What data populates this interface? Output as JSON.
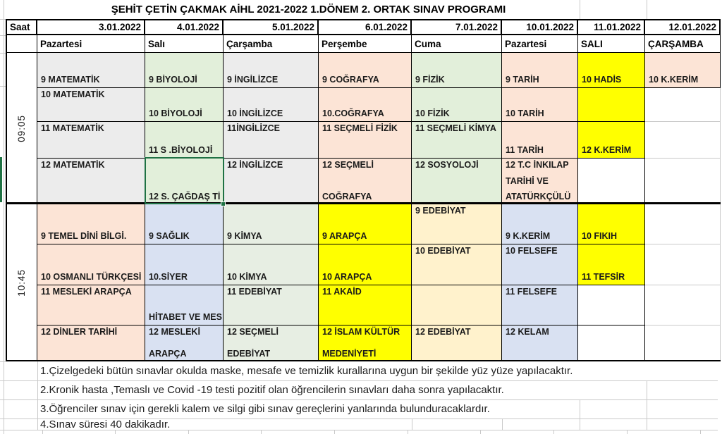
{
  "app": {
    "title": "ŞEHİT ÇETİN ÇAKMAK AİHL  2021-2022 1.DÖNEM 2. ORTAK SINAV PROGRAMI"
  },
  "header": {
    "saat_label": "Saat",
    "columns": [
      {
        "date": "3.01.2022",
        "day": "Pazartesi"
      },
      {
        "date": "4.01.2022",
        "day": "Salı"
      },
      {
        "date": "5.01.2022",
        "day": "Çarşamba"
      },
      {
        "date": "6.01.2022",
        "day": "Perşembe"
      },
      {
        "date": "7.01.2022",
        "day": "Cuma"
      },
      {
        "date": "10.01.2022",
        "day": "Pazartesi"
      },
      {
        "date": "11.01.2022",
        "day": "SALI"
      },
      {
        "date": "12.01.2022",
        "day": "ÇARŞAMBA"
      }
    ]
  },
  "colors": {
    "grey": "#ECECEC",
    "green": "#E2EFDA",
    "green2": "#E7EEE3",
    "peach": "#FCE4D6",
    "yellow": "#FFFF00",
    "blue": "#D9E1F2",
    "cream": "#FFF2CC",
    "white": "#FFFFFF",
    "selection": "#1F7244",
    "gridline": "#C9C9C9",
    "border": "#000000"
  },
  "blocks": [
    {
      "time": "09:05",
      "rows": [
        {
          "cells": [
            {
              "t": "9 MATEMATİK",
              "bg": "grey",
              "va": "bottom"
            },
            {
              "t": "9 BİYOLOJİ",
              "bg": "green",
              "va": "bottom"
            },
            {
              "t": "9 İNGİLİZCE",
              "bg": "grey",
              "va": "bottom"
            },
            {
              "t": "9 COĞRAFYA",
              "bg": "peach",
              "va": "bottom"
            },
            {
              "t": "9 FİZİK",
              "bg": "green",
              "va": "bottom"
            },
            {
              "t": "9 TARİH",
              "bg": "peach",
              "va": "bottom"
            },
            {
              "t": "10 HADİS",
              "bg": "yellow",
              "va": "bottom"
            },
            {
              "t": "10 K.KERİM",
              "bg": "peach",
              "va": "bottom"
            }
          ]
        },
        {
          "cells": [
            {
              "t": "10 MATEMATİK",
              "bg": "grey",
              "va": "top"
            },
            {
              "t": "10 BİYOLOJİ",
              "bg": "green",
              "va": "bottom"
            },
            {
              "t": "10 İNGİLİZCE",
              "bg": "grey",
              "va": "bottom"
            },
            {
              "t": "10.COĞRAFYA",
              "bg": "peach",
              "va": "bottom"
            },
            {
              "t": "10 FİZİK",
              "bg": "green",
              "va": "bottom"
            },
            {
              "t": "10 TARİH",
              "bg": "peach",
              "va": "bottom"
            },
            {
              "t": "",
              "bg": "yellow",
              "va": "top"
            },
            {
              "t": "",
              "bg": "white",
              "va": "top",
              "gb": true
            }
          ]
        },
        {
          "cells": [
            {
              "t": "11 MATEMATİK",
              "bg": "grey",
              "va": "top"
            },
            {
              "t": "11 S .BİYOLOJİ",
              "bg": "green",
              "va": "bottom"
            },
            {
              "t": "11İNGİLİZCE",
              "bg": "grey",
              "va": "top"
            },
            {
              "t": "11 SEÇMELİ FİZİK",
              "bg": "peach",
              "va": "top"
            },
            {
              "t": "11 SEÇMELİ KİMYA",
              "bg": "green",
              "va": "top"
            },
            {
              "t": "11 TARİH",
              "bg": "peach",
              "va": "bottom"
            },
            {
              "t": "12 K.KERİM",
              "bg": "yellow",
              "va": "bottom"
            },
            {
              "t": "",
              "bg": "white",
              "va": "top",
              "gb": true
            }
          ]
        },
        {
          "cells": [
            {
              "t": "12 MATEMATİK",
              "bg": "grey",
              "va": "top"
            },
            {
              "t": "12 S. ÇAĞDAŞ Tİ",
              "bg": "green",
              "va": "bottom",
              "selected": true
            },
            {
              "t": "12 İNGİLİZCE",
              "bg": "grey",
              "va": "top"
            },
            {
              "t": [
                "12 SEÇMELİ",
                "COĞRAFYA"
              ],
              "bg": "peach",
              "va": "spread"
            },
            {
              "t": "12 SOSYOLOJİ",
              "bg": "green",
              "va": "top"
            },
            {
              "t": [
                "12 T.C İNKILAP",
                "TARİHİ  VE",
                "ATATÜRKÇÜLÜ"
              ],
              "bg": "peach",
              "va": "spread"
            },
            {
              "t": "",
              "bg": "white",
              "va": "top"
            },
            {
              "t": "",
              "bg": "white",
              "va": "top",
              "gb": true
            }
          ]
        }
      ]
    },
    {
      "time": "10:45",
      "rows": [
        {
          "cells": [
            {
              "t": "9 TEMEL DİNİ BİLGİ.",
              "bg": "peach",
              "va": "bottom"
            },
            {
              "t": "9 SAĞLIK",
              "bg": "blue",
              "va": "bottom"
            },
            {
              "t": "9 KİMYA",
              "bg": "green2",
              "va": "bottom"
            },
            {
              "t": "9 ARAPÇA",
              "bg": "yellow",
              "va": "bottom"
            },
            {
              "t": "9 EDEBİYAT",
              "bg": "cream",
              "va": "top"
            },
            {
              "t": "9 K.KERİM",
              "bg": "blue",
              "va": "bottom"
            },
            {
              "t": "10 FIKIH",
              "bg": "yellow",
              "va": "bottom"
            },
            {
              "t": "",
              "bg": "white",
              "va": "top",
              "gb": true
            }
          ]
        },
        {
          "cells": [
            {
              "t": "10 OSMANLI TÜRKÇESİ",
              "bg": "peach",
              "va": "bottom"
            },
            {
              "t": "10.SİYER",
              "bg": "blue",
              "va": "bottom"
            },
            {
              "t": "10 KİMYA",
              "bg": "green2",
              "va": "bottom"
            },
            {
              "t": "10 ARAPÇA",
              "bg": "yellow",
              "va": "bottom"
            },
            {
              "t": "10 EDEBİYAT",
              "bg": "cream",
              "va": "top"
            },
            {
              "t": "10 FELSEFE",
              "bg": "blue",
              "va": "top"
            },
            {
              "t": "11 TEFSİR",
              "bg": "yellow",
              "va": "bottom"
            },
            {
              "t": "",
              "bg": "white",
              "va": "top",
              "gb": true
            }
          ]
        },
        {
          "cells": [
            {
              "t": "11 MESLEKİ ARAPÇA",
              "bg": "peach",
              "va": "top"
            },
            {
              "t": "HİTABET VE MES",
              "bg": "blue",
              "va": "bottom"
            },
            {
              "t": "11 EDEBİYAT",
              "bg": "green2",
              "va": "top"
            },
            {
              "t": "11 AKAİD",
              "bg": "yellow",
              "va": "top"
            },
            {
              "t": "",
              "bg": "cream",
              "va": "top"
            },
            {
              "t": "11 FELSEFE",
              "bg": "blue",
              "va": "top"
            },
            {
              "t": "",
              "bg": "white",
              "va": "top"
            },
            {
              "t": "",
              "bg": "white",
              "va": "top",
              "gb": true
            }
          ]
        },
        {
          "cells": [
            {
              "t": "12 DİNLER  TARİHİ",
              "bg": "peach",
              "va": "top"
            },
            {
              "t": [
                "12 MESLEKİ",
                "ARAPÇA"
              ],
              "bg": "blue",
              "va": "spread"
            },
            {
              "t": [
                "12 SEÇMELİ",
                "EDEBİYAT"
              ],
              "bg": "green2",
              "va": "spread"
            },
            {
              "t": [
                "12  İSLAM KÜLTÜR",
                "MEDENİYETİ"
              ],
              "bg": "yellow",
              "va": "spread"
            },
            {
              "t": "12 EDEBİYAT",
              "bg": "cream",
              "va": "top"
            },
            {
              "t": "12 KELAM",
              "bg": "blue",
              "va": "top"
            },
            {
              "t": "",
              "bg": "white",
              "va": "top"
            },
            {
              "t": "",
              "bg": "white",
              "va": "top",
              "gb": true
            }
          ]
        }
      ]
    }
  ],
  "footer": {
    "notes": [
      "1.Çizelgedeki bütün sınavlar okulda maske, mesafe ve temizlik kurallarına uygun bir şekilde yüz yüze yapılacaktır.",
      "2.Kronik hasta ,Temaslı ve Covid -19 testi pozitif olan öğrencilerin sınavları daha sonra yapılacaktır.",
      "3.Öğrenciler sınav için gerekli kalem ve silgi gibi sınav gereçlerini yanlarında bulunduracaklardır.",
      "4.Sınav süresi 40 dakikadır."
    ]
  }
}
